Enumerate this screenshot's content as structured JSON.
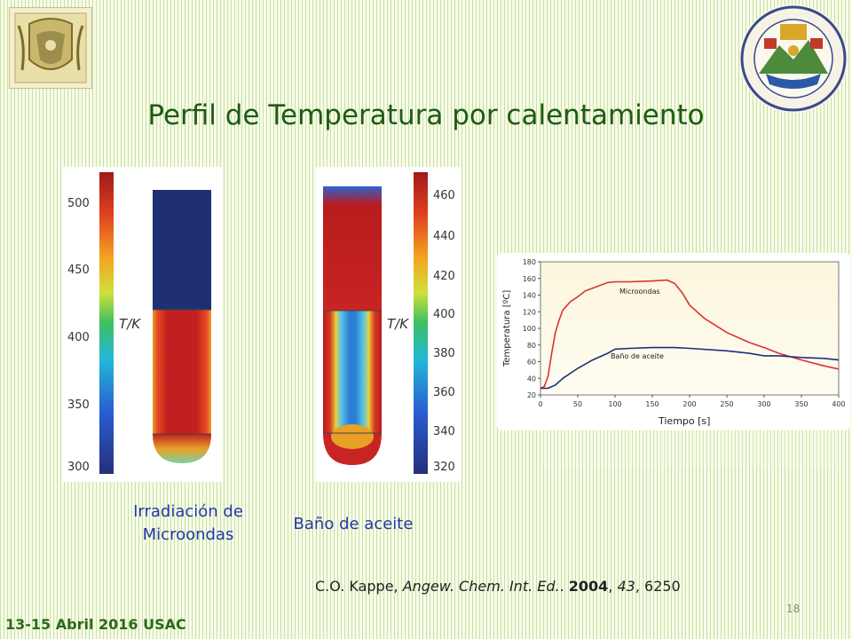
{
  "slide": {
    "title": "Perfil de Temperatura por calentamiento",
    "footer_date": "13-15 Abril 2016 USAC",
    "page_number": "18"
  },
  "captions": {
    "microwave": "Irradiación de Microondas",
    "oil_bath": "Baño de aceite"
  },
  "citation": {
    "authors": "C.O. Kappe, ",
    "journal": "Angew. Chem. Int. Ed.",
    "sep": ". ",
    "year": "2004",
    "volume": "43",
    "pages": "6250"
  },
  "logos": {
    "left": "unam-seal",
    "right": "usac-seal"
  },
  "chart_data": [
    {
      "type": "heatmap",
      "name": "microwave-tube",
      "colorbar_label": "T/K",
      "colorbar_ticks": [
        "500",
        "450",
        "400",
        "350",
        "300"
      ],
      "range": [
        300,
        520
      ]
    },
    {
      "type": "heatmap",
      "name": "oil-bath-tube",
      "colorbar_label": "T/K",
      "colorbar_ticks": [
        "460",
        "440",
        "420",
        "400",
        "380",
        "360",
        "340",
        "320"
      ],
      "range": [
        315,
        470
      ]
    },
    {
      "type": "line",
      "xlabel": "Tiempo [s]",
      "ylabel": "Temperatura [ºC]",
      "xlim": [
        0,
        400
      ],
      "ylim": [
        20,
        180
      ],
      "xticks": [
        0,
        50,
        100,
        150,
        200,
        250,
        300,
        350,
        400
      ],
      "yticks": [
        20,
        40,
        60,
        80,
        100,
        120,
        140,
        160,
        180
      ],
      "series": [
        {
          "name": "Microondas",
          "color": "#d93232",
          "x": [
            0,
            5,
            10,
            15,
            20,
            25,
            30,
            40,
            50,
            60,
            75,
            90,
            100,
            120,
            150,
            170,
            180,
            190,
            200,
            220,
            250,
            280,
            300,
            320,
            350,
            380,
            400
          ],
          "y": [
            28,
            30,
            42,
            70,
            95,
            110,
            122,
            132,
            138,
            145,
            150,
            155,
            156,
            156,
            157,
            158,
            154,
            143,
            128,
            112,
            95,
            83,
            77,
            70,
            62,
            55,
            51
          ]
        },
        {
          "name": "Baño de aceite",
          "color": "#1f2f7a",
          "x": [
            0,
            10,
            20,
            30,
            50,
            70,
            90,
            100,
            120,
            150,
            180,
            200,
            250,
            280,
            300,
            320,
            350,
            380,
            400
          ],
          "y": [
            28,
            28,
            32,
            40,
            52,
            62,
            70,
            75,
            76,
            77,
            77,
            76,
            73,
            70,
            67,
            67,
            65,
            64,
            62
          ]
        }
      ]
    }
  ]
}
